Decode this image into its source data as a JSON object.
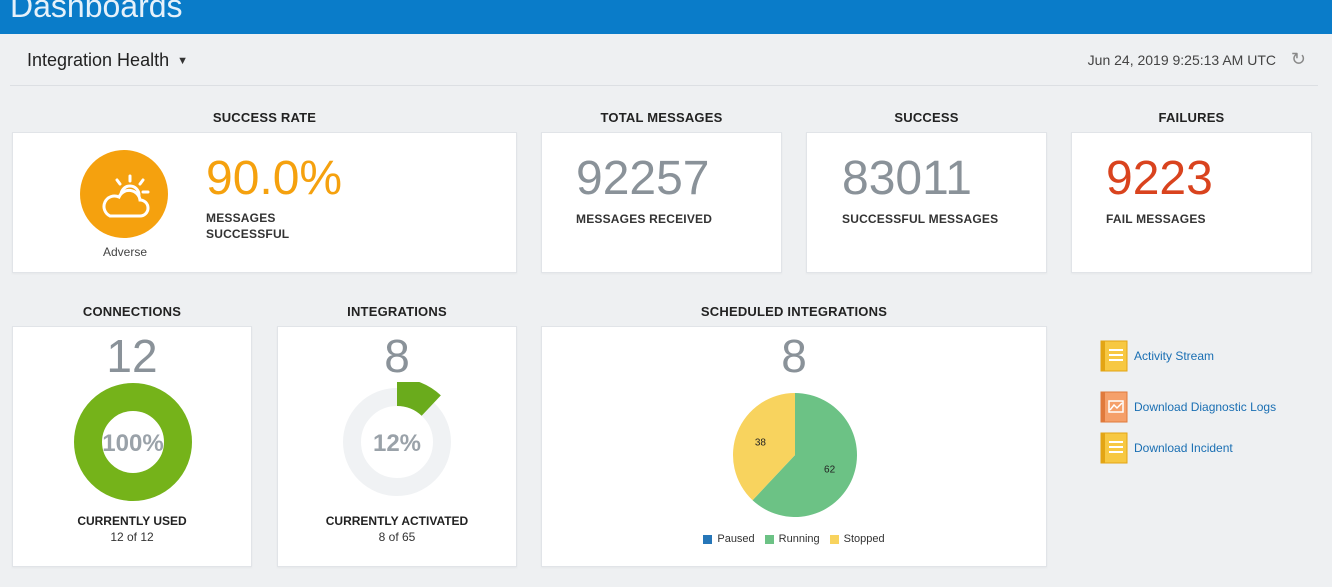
{
  "header": {
    "title": "Dashboards"
  },
  "toolbar": {
    "dashboard_name": "Integration Health",
    "timestamp": "Jun 24, 2019 9:25:13 AM UTC"
  },
  "success_rate": {
    "label": "SUCCESS RATE",
    "value": "90.0%",
    "caption_line1": "MESSAGES",
    "caption_line2": "SUCCESSFUL",
    "status": "Adverse",
    "status_color": "#f5a10e",
    "icon": "partly-cloudy-icon"
  },
  "total_messages": {
    "label": "TOTAL MESSAGES",
    "value": "92257",
    "caption": "MESSAGES RECEIVED"
  },
  "success": {
    "label": "SUCCESS",
    "value": "83011",
    "caption": "SUCCESSFUL MESSAGES"
  },
  "failures": {
    "label": "FAILURES",
    "value": "9223",
    "caption": "FAIL MESSAGES",
    "color": "#d9431e"
  },
  "connections": {
    "label": "CONNECTIONS",
    "count": "12",
    "percent_label": "100%",
    "percent": 100,
    "caption": "CURRENTLY USED",
    "detail": "12 of 12",
    "color": "#75b31a"
  },
  "integrations": {
    "label": "INTEGRATIONS",
    "count": "8",
    "percent_label": "12%",
    "percent": 12,
    "caption": "CURRENTLY ACTIVATED",
    "detail": "8 of 65",
    "color": "#6aab1c"
  },
  "scheduled": {
    "label": "SCHEDULED INTEGRATIONS",
    "count": "8"
  },
  "chart_data": {
    "type": "pie",
    "slices": [
      {
        "name": "Running",
        "value": 62,
        "label": "62",
        "color": "#6cc285"
      },
      {
        "name": "Stopped",
        "value": 38,
        "label": "38",
        "color": "#f8d35e"
      }
    ],
    "legend": [
      {
        "name": "Paused",
        "color": "#2676b8"
      },
      {
        "name": "Running",
        "color": "#6cc285"
      },
      {
        "name": "Stopped",
        "color": "#f8d35e"
      }
    ],
    "legend_position": "bottom"
  },
  "links": [
    {
      "label": "Activity Stream",
      "icon": "document-icon",
      "color": "#f5b820"
    },
    {
      "label": "Download Diagnostic Logs",
      "icon": "chart-document-icon",
      "color": "#f08a4b"
    },
    {
      "label": "Download Incident",
      "icon": "document-icon",
      "color": "#f5b820"
    }
  ]
}
